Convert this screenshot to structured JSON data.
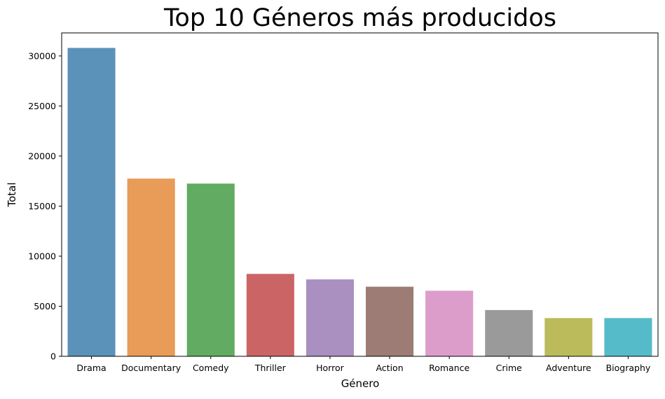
{
  "chart_data": {
    "type": "bar",
    "title": "Top 10 Géneros más producidos",
    "xlabel": "Género",
    "ylabel": "Total",
    "categories": [
      "Drama",
      "Documentary",
      "Comedy",
      "Thriller",
      "Horror",
      "Action",
      "Romance",
      "Crime",
      "Adventure",
      "Biography"
    ],
    "values": [
      30800,
      17750,
      17250,
      8230,
      7680,
      6950,
      6550,
      4620,
      3820,
      3820
    ],
    "colors": [
      "#5b92ba",
      "#e89c57",
      "#62ab62",
      "#cb6565",
      "#a990c0",
      "#9c7c74",
      "#dd9dcb",
      "#9a9a9a",
      "#bbbb5c",
      "#56bbc9"
    ],
    "ylim": [
      0,
      32300
    ],
    "yticks": [
      0,
      5000,
      10000,
      15000,
      20000,
      25000,
      30000
    ],
    "grid": false,
    "legend": false
  }
}
